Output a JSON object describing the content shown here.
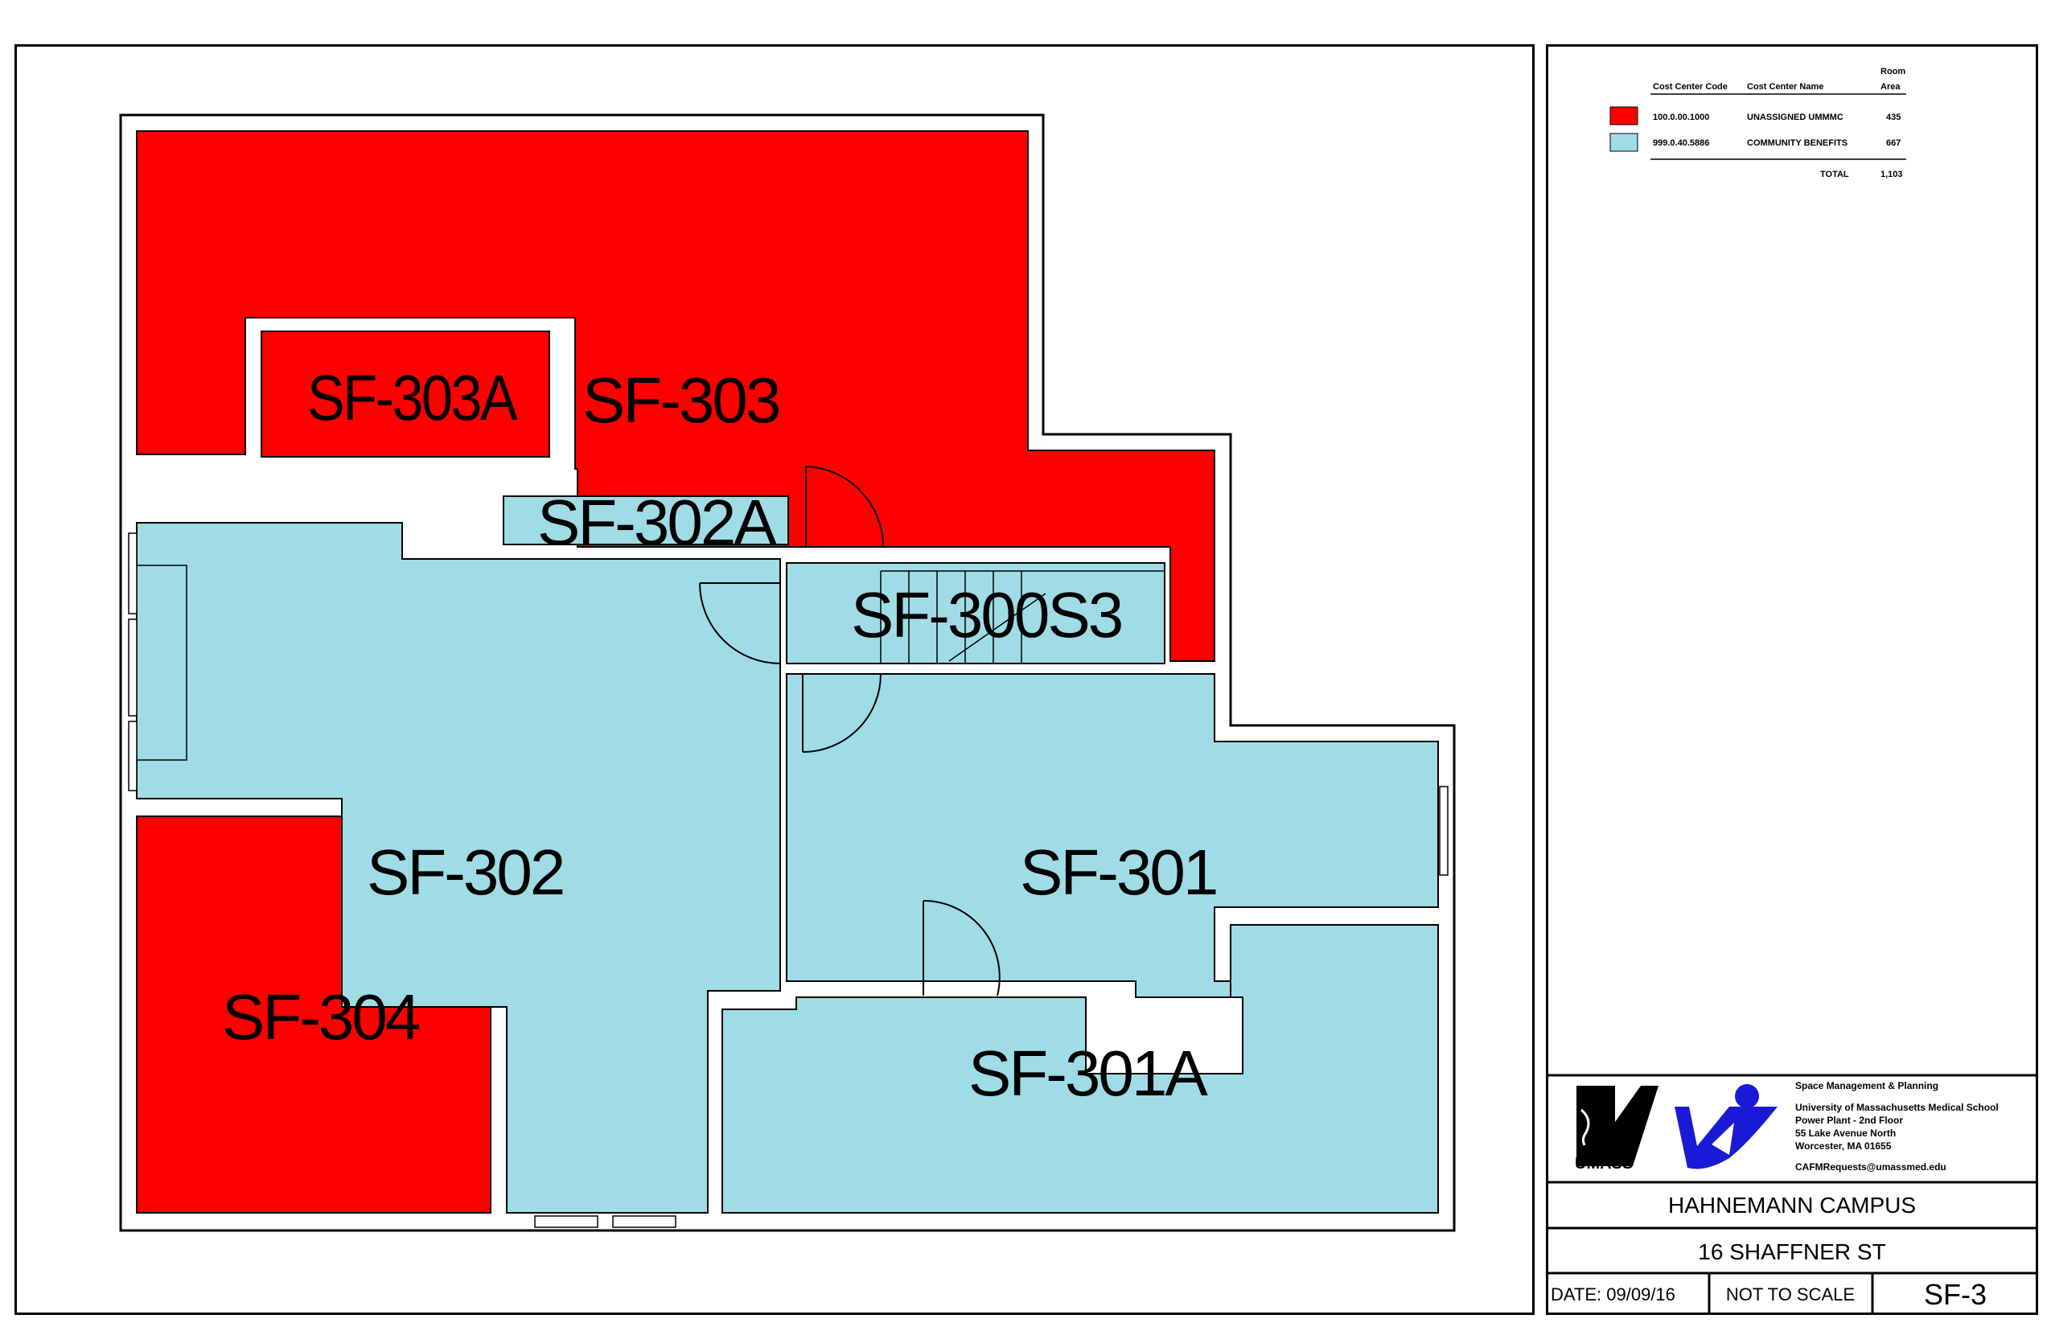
{
  "rooms": [
    {
      "id": "SF-303A",
      "label": "SF-303A",
      "cost_center": "100.0.00.1000"
    },
    {
      "id": "SF-303",
      "label": "SF-303",
      "cost_center": "100.0.00.1000"
    },
    {
      "id": "SF-302A",
      "label": "SF-302A",
      "cost_center": "999.0.40.5886"
    },
    {
      "id": "SF-300S3",
      "label": "SF-300S3",
      "cost_center": "999.0.40.5886"
    },
    {
      "id": "SF-302",
      "label": "SF-302",
      "cost_center": "999.0.40.5886"
    },
    {
      "id": "SF-301",
      "label": "SF-301",
      "cost_center": "999.0.40.5886"
    },
    {
      "id": "SF-304",
      "label": "SF-304",
      "cost_center": "100.0.00.1000"
    },
    {
      "id": "SF-301A",
      "label": "SF-301A",
      "cost_center": "999.0.40.5886"
    }
  ],
  "legend": {
    "headers": {
      "code": "Cost Center Code",
      "name": "Cost Center Name",
      "area_line1": "Room",
      "area_line2": "Area"
    },
    "rows": [
      {
        "color": "#ff0000",
        "code": "100.0.00.1000",
        "name": "UNASSIGNED UMMMC",
        "area": "435"
      },
      {
        "color": "#a0dce5",
        "code": "999.0.40.5886",
        "name": "COMMUNITY BENEFITS",
        "area": "667"
      }
    ],
    "total_label": "TOTAL",
    "total_value": "1,103"
  },
  "org": {
    "dept": "Space Management & Planning",
    "line1": "University of Massachusetts Medical School",
    "line2": "Power Plant - 2nd Floor",
    "line3": "55 Lake Avenue North",
    "line4": "Worcester, MA 01655",
    "email": "CAFMRequests@umassmed.edu",
    "logo_text": "UMASS"
  },
  "title_block": {
    "campus": "HAHNEMANN CAMPUS",
    "address": "16 SHAFFNER ST",
    "date": "DATE:  09/09/16",
    "scale": "NOT TO SCALE",
    "sheet": "SF-3"
  },
  "colors": {
    "red": "#ff0000",
    "blue": "#a0dce5",
    "logo_blue": "#1a1ad6"
  }
}
